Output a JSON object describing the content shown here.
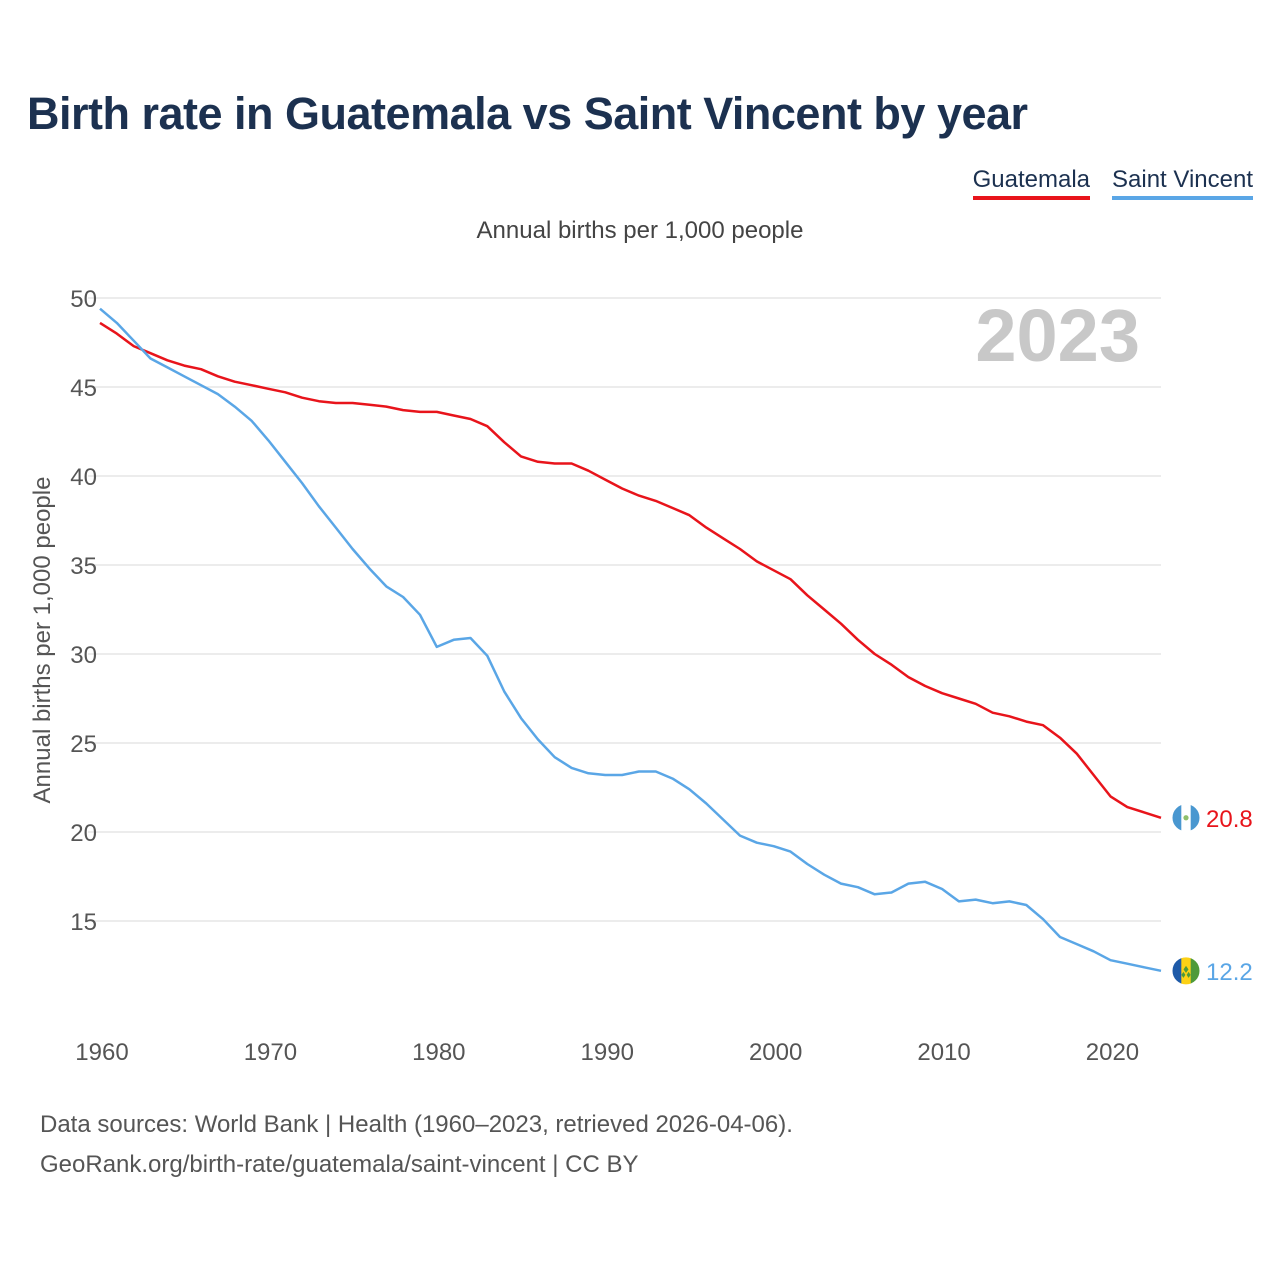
{
  "title": "Birth rate in Guatemala vs Saint Vincent by year",
  "legend": {
    "guatemala": "Guatemala",
    "saint_vincent": "Saint Vincent"
  },
  "colors": {
    "guatemala": "#e8141b",
    "saint_vincent": "#5aa6e6",
    "title": "#1c3150",
    "year_watermark": "#c8c8c8"
  },
  "chart_data": {
    "type": "line",
    "title": "Birth rate in Guatemala vs Saint Vincent by year",
    "subtitle": "Annual births per 1,000 people",
    "ylabel": "Annual births per 1,000 people",
    "xlabel": "",
    "ylim": [
      10,
      50
    ],
    "xlim": [
      1960,
      2023
    ],
    "yticks": [
      15,
      20,
      25,
      30,
      35,
      40,
      45,
      50
    ],
    "xticks": [
      1960,
      1970,
      1980,
      1990,
      2000,
      2010,
      2020
    ],
    "year_label": "2023",
    "grid": true,
    "x": [
      1960,
      1961,
      1962,
      1963,
      1964,
      1965,
      1966,
      1967,
      1968,
      1969,
      1970,
      1971,
      1972,
      1973,
      1974,
      1975,
      1976,
      1977,
      1978,
      1979,
      1980,
      1981,
      1982,
      1983,
      1984,
      1985,
      1986,
      1987,
      1988,
      1989,
      1990,
      1991,
      1992,
      1993,
      1994,
      1995,
      1996,
      1997,
      1998,
      1999,
      2000,
      2001,
      2002,
      2003,
      2004,
      2005,
      2006,
      2007,
      2008,
      2009,
      2010,
      2011,
      2012,
      2013,
      2014,
      2015,
      2016,
      2017,
      2018,
      2019,
      2020,
      2021,
      2022,
      2023
    ],
    "series": [
      {
        "name": "Guatemala",
        "color": "#e8141b",
        "end_label": "20.8",
        "values": [
          48.6,
          48.0,
          47.3,
          46.9,
          46.5,
          46.2,
          46.0,
          45.6,
          45.3,
          45.1,
          44.9,
          44.7,
          44.4,
          44.2,
          44.1,
          44.1,
          44.0,
          43.9,
          43.7,
          43.6,
          43.6,
          43.4,
          43.2,
          42.8,
          41.9,
          41.1,
          40.8,
          40.7,
          40.7,
          40.3,
          39.8,
          39.3,
          38.9,
          38.6,
          38.2,
          37.8,
          37.1,
          36.5,
          35.9,
          35.2,
          34.7,
          34.2,
          33.3,
          32.5,
          31.7,
          30.8,
          30.0,
          29.4,
          28.7,
          28.2,
          27.8,
          27.5,
          27.2,
          26.7,
          26.5,
          26.2,
          26.0,
          25.3,
          24.4,
          23.2,
          22.0,
          21.4,
          21.1,
          20.8
        ]
      },
      {
        "name": "Saint Vincent",
        "color": "#5aa6e6",
        "end_label": "12.2",
        "values": [
          49.4,
          48.6,
          47.6,
          46.6,
          46.1,
          45.6,
          45.1,
          44.6,
          43.9,
          43.1,
          42.0,
          40.8,
          39.6,
          38.3,
          37.1,
          35.9,
          34.8,
          33.8,
          33.2,
          32.2,
          30.4,
          30.8,
          30.9,
          29.9,
          27.9,
          26.4,
          25.2,
          24.2,
          23.6,
          23.3,
          23.2,
          23.2,
          23.4,
          23.4,
          23.0,
          22.4,
          21.6,
          20.7,
          19.8,
          19.4,
          19.2,
          18.9,
          18.2,
          17.6,
          17.1,
          16.9,
          16.5,
          16.6,
          17.1,
          17.2,
          16.8,
          16.1,
          16.2,
          16.0,
          16.1,
          15.9,
          15.1,
          14.1,
          13.7,
          13.3,
          12.8,
          12.6,
          12.4,
          12.2
        ]
      }
    ]
  },
  "footer": {
    "line1": "Data sources: World Bank | Health (1960–2023, retrieved 2026-04-06).",
    "line2": "GeoRank.org/birth-rate/guatemala/saint-vincent | CC BY"
  }
}
